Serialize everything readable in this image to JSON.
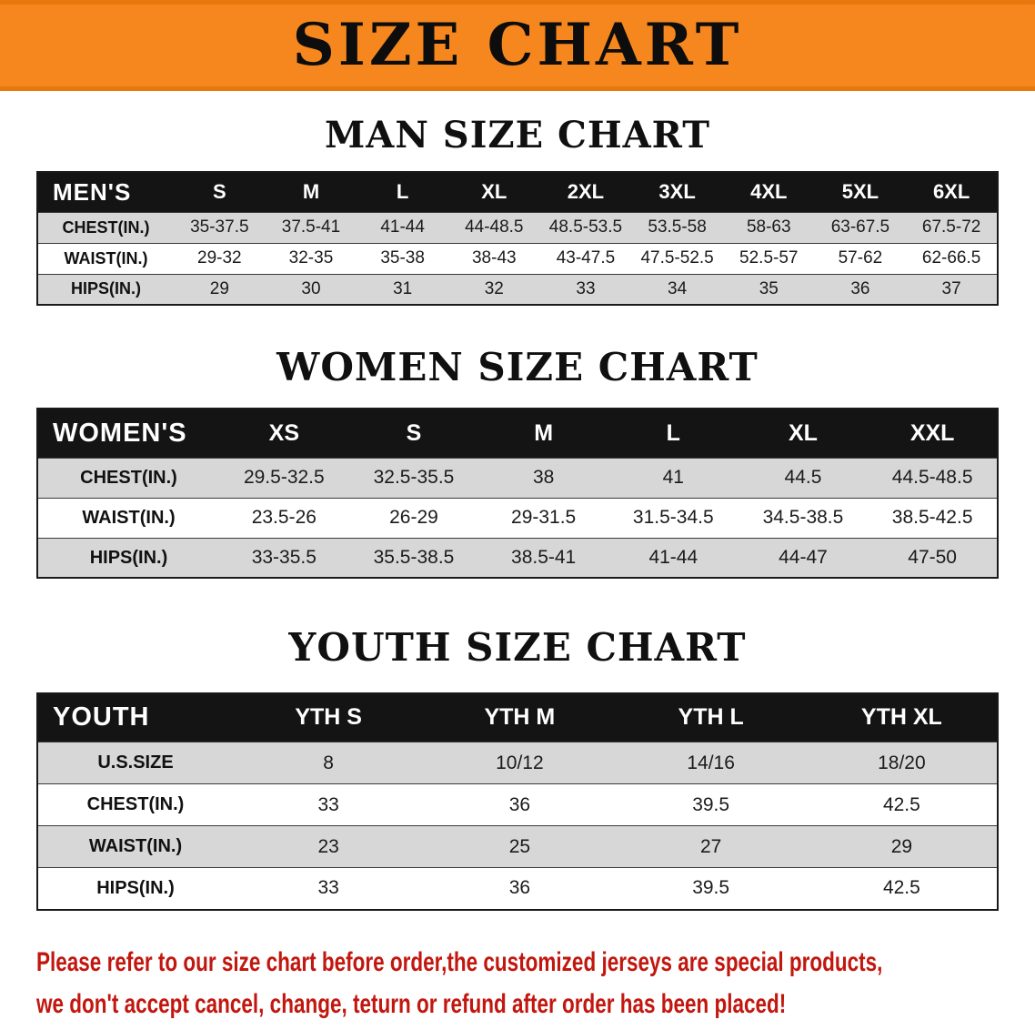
{
  "banner": {
    "title": "SIZE CHART"
  },
  "men": {
    "heading": "MAN SIZE CHART",
    "label": "MEN'S",
    "cols": [
      "S",
      "M",
      "L",
      "XL",
      "2XL",
      "3XL",
      "4XL",
      "5XL",
      "6XL"
    ],
    "rows": [
      {
        "label": "CHEST(IN.)",
        "values": [
          "35-37.5",
          "37.5-41",
          "41-44",
          "44-48.5",
          "48.5-53.5",
          "53.5-58",
          "58-63",
          "63-67.5",
          "67.5-72"
        ]
      },
      {
        "label": "WAIST(IN.)",
        "values": [
          "29-32",
          "32-35",
          "35-38",
          "38-43",
          "43-47.5",
          "47.5-52.5",
          "52.5-57",
          "57-62",
          "62-66.5"
        ]
      },
      {
        "label": "HIPS(IN.)",
        "values": [
          "29",
          "30",
          "31",
          "32",
          "33",
          "34",
          "35",
          "36",
          "37"
        ]
      }
    ]
  },
  "women": {
    "heading": "WOMEN SIZE CHART",
    "label": "WOMEN'S",
    "cols": [
      "XS",
      "S",
      "M",
      "L",
      "XL",
      "XXL"
    ],
    "rows": [
      {
        "label": "CHEST(IN.)",
        "values": [
          "29.5-32.5",
          "32.5-35.5",
          "38",
          "41",
          "44.5",
          "44.5-48.5"
        ]
      },
      {
        "label": "WAIST(IN.)",
        "values": [
          "23.5-26",
          "26-29",
          "29-31.5",
          "31.5-34.5",
          "34.5-38.5",
          "38.5-42.5"
        ]
      },
      {
        "label": "HIPS(IN.)",
        "values": [
          "33-35.5",
          "35.5-38.5",
          "38.5-41",
          "41-44",
          "44-47",
          "47-50"
        ]
      }
    ]
  },
  "youth": {
    "heading": "YOUTH SIZE CHART",
    "label": "YOUTH",
    "cols": [
      "YTH S",
      "YTH M",
      "YTH L",
      "YTH XL"
    ],
    "rows": [
      {
        "label": "U.S.SIZE",
        "values": [
          "8",
          "10/12",
          "14/16",
          "18/20"
        ]
      },
      {
        "label": "CHEST(IN.)",
        "values": [
          "33",
          "36",
          "39.5",
          "42.5"
        ]
      },
      {
        "label": "WAIST(IN.)",
        "values": [
          "23",
          "25",
          "27",
          "29"
        ]
      },
      {
        "label": "HIPS(IN.)",
        "values": [
          "33",
          "36",
          "39.5",
          "42.5"
        ]
      }
    ]
  },
  "footer": {
    "line1": "Please refer to our size chart before order,the customized jerseys are special products,",
    "line2": "we don't accept cancel, change, teturn or refund after order has been placed!"
  },
  "colors": {
    "banner_orange": "#f6871e",
    "header_black": "#141414",
    "stripe_gray": "#d7d7d7",
    "notice_red": "#c2170f"
  }
}
